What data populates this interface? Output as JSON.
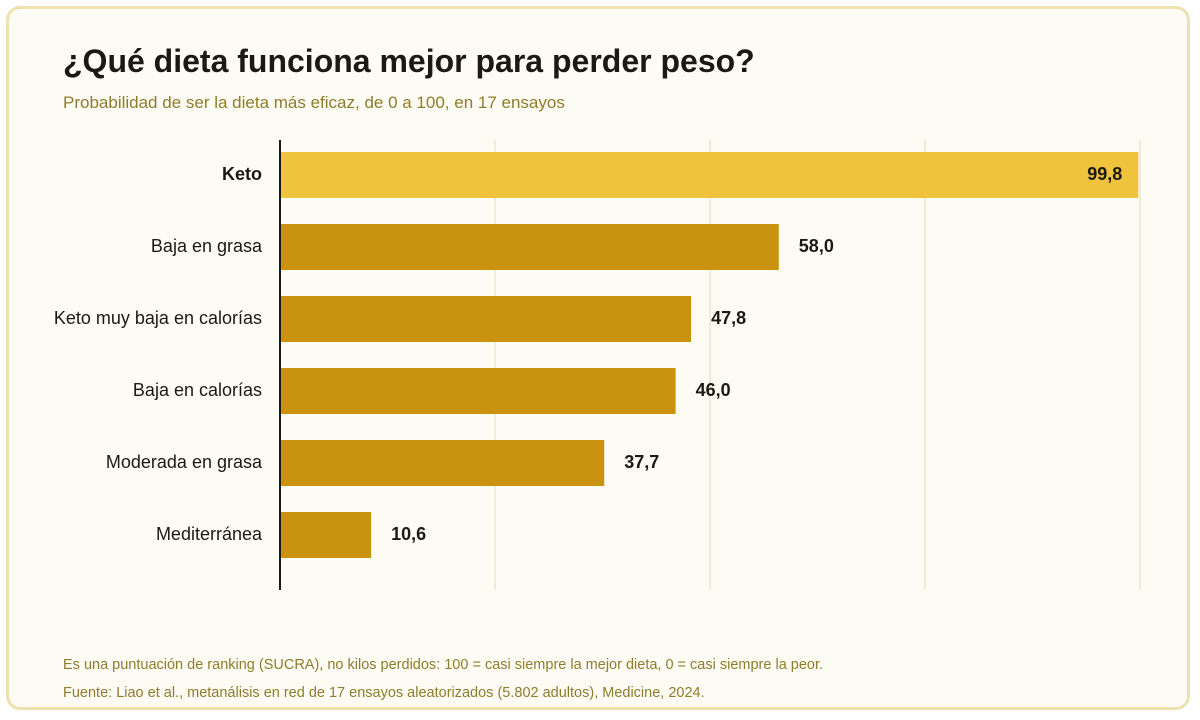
{
  "title": "¿Qué dieta funciona mejor para perder peso?",
  "subtitle": "Probabilidad de ser la dieta más eficaz, de 0 a 100, en 17 ensayos",
  "footnotes": {
    "note": "Es una puntuación de ranking (SUCRA), no kilos perdidos: 100 = casi siempre la mejor dieta, 0 = casi siempre la peor.",
    "source": "Fuente: Liao et al., metanálisis en red de 17 ensayos aleatorizados (5.802 adultos), Medicine, 2024."
  },
  "colors": {
    "highlight": "#efc43c",
    "bar": "#c99310",
    "grid": "#ece7cf",
    "axis": "#1b1a12",
    "tick": "#8f7c2c",
    "label": "#1b1a12"
  },
  "chart_data": {
    "type": "bar",
    "orientation": "horizontal",
    "categories": [
      "Keto",
      "Baja en grasa",
      "Keto muy baja en calorías",
      "Baja en calorías",
      "Moderada en grasa",
      "Mediterránea"
    ],
    "values": [
      99.8,
      58.0,
      47.8,
      46.0,
      37.7,
      10.6
    ],
    "value_labels": [
      "99,8",
      "58,0",
      "47,8",
      "46,0",
      "37,7",
      "10,6"
    ],
    "highlighted": "Keto",
    "xlim": [
      0,
      100
    ],
    "xticks": [
      0,
      25,
      50,
      75,
      100
    ],
    "grid": true
  }
}
